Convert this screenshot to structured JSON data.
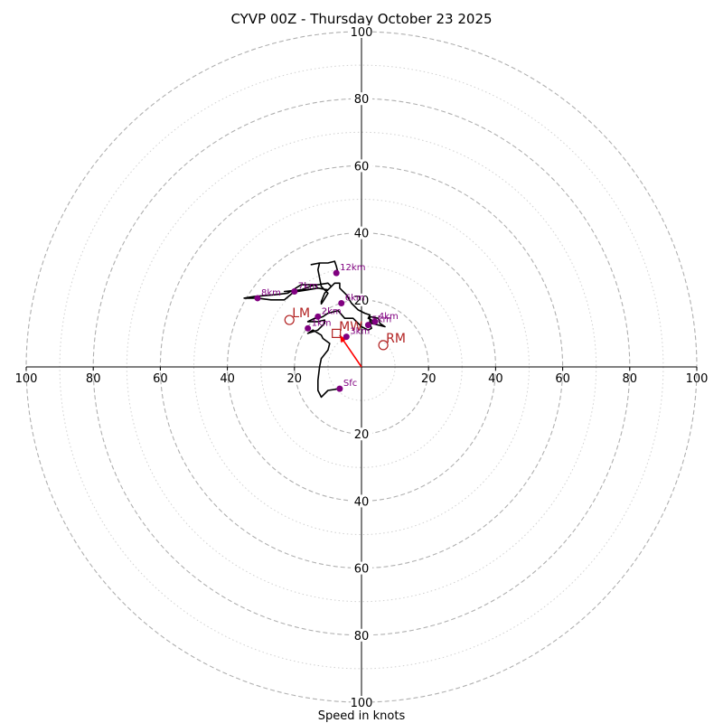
{
  "chart_data": {
    "type": "hodograph",
    "title": "CYVP 00Z - Thursday October 23 2025",
    "xlabel": "Speed in knots",
    "units": "knots",
    "max_speed": 100,
    "rings_major": [
      20,
      40,
      60,
      80,
      100
    ],
    "rings_minor": [
      10,
      30,
      50,
      70,
      90
    ],
    "tick_labels_left": [
      "100",
      "80",
      "60",
      "40",
      "20"
    ],
    "tick_labels_right": [
      "20",
      "40",
      "60",
      "80",
      "100"
    ],
    "tick_labels_top": [
      "20",
      "40",
      "60",
      "80",
      "100"
    ],
    "tick_labels_bottom": [
      "20",
      "40",
      "60",
      "80",
      "100"
    ],
    "trace": [
      [
        -6.5,
        -6.5
      ],
      [
        -10,
        -7
      ],
      [
        -12,
        -9
      ],
      [
        -13,
        -7
      ],
      [
        -13,
        -4
      ],
      [
        -12.5,
        0
      ],
      [
        -12,
        2.5
      ],
      [
        -10,
        5
      ],
      [
        -9.5,
        7
      ],
      [
        -11.5,
        8.5
      ],
      [
        -12,
        9.5
      ],
      [
        -14.5,
        11
      ],
      [
        -16,
        10
      ],
      [
        -13,
        11
      ],
      [
        -11,
        13
      ],
      [
        -11,
        14
      ],
      [
        -13,
        13.5
      ],
      [
        -16,
        13.5
      ],
      [
        -14,
        14.5
      ],
      [
        -13,
        14.5
      ],
      [
        -11.5,
        15
      ],
      [
        -10,
        16
      ],
      [
        -7,
        16.8
      ],
      [
        -5,
        14.5
      ],
      [
        -2.5,
        14.5
      ],
      [
        0,
        12
      ],
      [
        2,
        11
      ],
      [
        3,
        11.5
      ],
      [
        2.5,
        13
      ],
      [
        2.5,
        15
      ],
      [
        5,
        14.5
      ],
      [
        5.5,
        13
      ],
      [
        7,
        12
      ],
      [
        3,
        13
      ],
      [
        3,
        14
      ],
      [
        2,
        14.5
      ],
      [
        2.5,
        15.5
      ],
      [
        1,
        16
      ],
      [
        -1,
        17
      ],
      [
        -3,
        19
      ],
      [
        -4.5,
        21.5
      ],
      [
        -6.5,
        23.5
      ],
      [
        -6.5,
        25
      ],
      [
        -8,
        25
      ],
      [
        -10,
        23
      ],
      [
        -13,
        23.5
      ],
      [
        -16,
        23
      ],
      [
        -19,
        22.5
      ],
      [
        -23,
        22.5
      ],
      [
        -18,
        23
      ],
      [
        -14,
        24.5
      ],
      [
        -13,
        23.5
      ],
      [
        -20,
        22.5
      ],
      [
        -23,
        20
      ],
      [
        -27,
        20
      ],
      [
        -31,
        20.5
      ],
      [
        -35,
        20.5
      ],
      [
        -32,
        21
      ],
      [
        -26,
        21.5
      ],
      [
        -22,
        22
      ],
      [
        -18,
        24.5
      ],
      [
        -13,
        24.5
      ],
      [
        -10,
        25
      ],
      [
        -9,
        24
      ],
      [
        -11,
        22
      ],
      [
        -12,
        19.5
      ],
      [
        -12,
        18.8
      ],
      [
        -11.5,
        19.5
      ],
      [
        -10,
        22
      ],
      [
        -12,
        24
      ],
      [
        -13,
        29
      ],
      [
        -12.5,
        31
      ],
      [
        -15,
        30.5
      ],
      [
        -12.5,
        31
      ],
      [
        -10,
        31
      ],
      [
        -8,
        31.5
      ],
      [
        -7.5,
        30
      ],
      [
        -7,
        28
      ]
    ],
    "height_markers": [
      {
        "label": "Sfc",
        "u": -6.5,
        "v": -6.5
      },
      {
        "label": "1km",
        "u": -16,
        "v": 11.5
      },
      {
        "label": "2km",
        "u": -13,
        "v": 15
      },
      {
        "label": "3km",
        "u": -4.5,
        "v": 9
      },
      {
        "label": "4km",
        "u": 4,
        "v": 13.5
      },
      {
        "label": "5km",
        "u": 2,
        "v": 12.5
      },
      {
        "label": "6km",
        "u": -6,
        "v": 19
      },
      {
        "label": "7km",
        "u": -20,
        "v": 22.5
      },
      {
        "label": "8km",
        "u": -31,
        "v": 20.5
      },
      {
        "label": "12km",
        "u": -7.5,
        "v": 28
      }
    ],
    "storm_motion": [
      {
        "label": "LM",
        "u": -21.5,
        "v": 14,
        "marker": "circle"
      },
      {
        "label": "MW",
        "u": -7.5,
        "v": 10,
        "marker": "square"
      },
      {
        "label": "RM",
        "u": 6.5,
        "v": 6.5,
        "marker": "circle"
      }
    ],
    "mean_wind_vector": {
      "u": -6.5,
      "v": 9.5
    },
    "colors": {
      "trace": "#000000",
      "markers": "#800080",
      "storm": "#b22222",
      "vector": "#ff0000",
      "grid": "#b0b0b0"
    }
  }
}
